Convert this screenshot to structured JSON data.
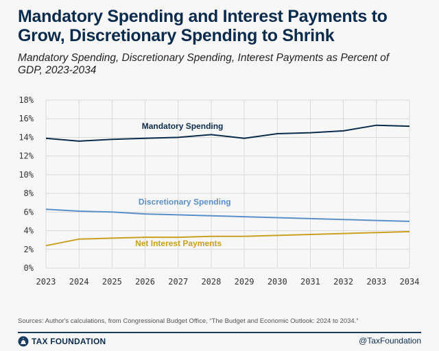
{
  "title": "Mandatory Spending and Interest Payments to Grow, Discretionary Spending to Shrink",
  "subtitle": "Mandatory Spending, Discretionary Spending, Interest Payments as Percent of GDP, 2023-2034",
  "source": "Sources: Author's calculations, from Congressional Budget Office, “The Budget and Economic Outlook: 2024 to 2034.”",
  "brand": {
    "name": "TAX FOUNDATION",
    "handle": "@TaxFoundation",
    "logo_icon": "capitol-dome-icon"
  },
  "colors": {
    "mandatory": "#0b2b4c",
    "discretionary": "#5b8fc8",
    "interest": "#c9a020",
    "grid": "#d9d9d9",
    "title": "#0b2b4c"
  },
  "chart_data": {
    "type": "line",
    "title": "Mandatory Spending, Discretionary Spending, Interest Payments as Percent of GDP, 2023-2034",
    "xlabel": "",
    "ylabel": "",
    "x": [
      2023,
      2024,
      2025,
      2026,
      2027,
      2028,
      2029,
      2030,
      2031,
      2032,
      2033,
      2034
    ],
    "x_tick_labels": [
      "2023",
      "2024",
      "2025",
      "2026",
      "2027",
      "2028",
      "2029",
      "2030",
      "2031",
      "2032",
      "2033",
      "2034"
    ],
    "y_tick_labels": [
      "0%",
      "2%",
      "4%",
      "6%",
      "8%",
      "10%",
      "12%",
      "14%",
      "16%",
      "18%"
    ],
    "y_ticks": [
      0,
      2,
      4,
      6,
      8,
      10,
      12,
      14,
      16,
      18
    ],
    "ylim": [
      0,
      18
    ],
    "grid": true,
    "series": [
      {
        "name": "Mandatory Spending",
        "key": "mandatory",
        "values": [
          13.9,
          13.6,
          13.8,
          13.9,
          14.0,
          14.3,
          13.9,
          14.4,
          14.5,
          14.7,
          15.3,
          15.2
        ],
        "label_x": 2025.9,
        "label_y": 14.9
      },
      {
        "name": "Discretionary Spending",
        "key": "discretionary",
        "values": [
          6.3,
          6.1,
          6.0,
          5.8,
          5.7,
          5.6,
          5.5,
          5.4,
          5.3,
          5.2,
          5.1,
          5.0
        ],
        "label_x": 2025.8,
        "label_y": 6.8
      },
      {
        "name": "Net Interest Payments",
        "key": "interest",
        "values": [
          2.4,
          3.1,
          3.2,
          3.3,
          3.3,
          3.4,
          3.4,
          3.5,
          3.6,
          3.7,
          3.8,
          3.9
        ],
        "label_x": 2025.7,
        "label_y": 2.35
      }
    ]
  }
}
